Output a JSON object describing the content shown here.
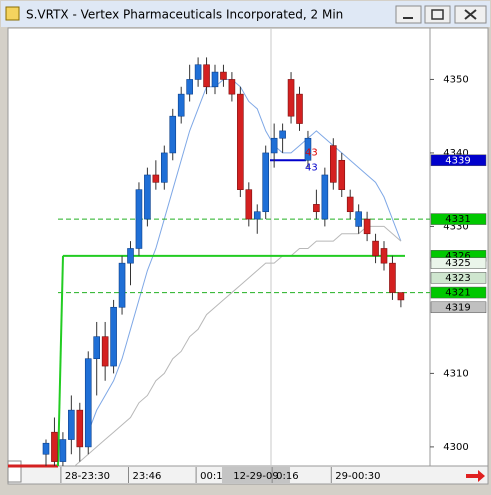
{
  "window": {
    "title": "S.VRTX - Vertex Pharmaceuticals Incorporated, 2 Min"
  },
  "chart_data": {
    "type": "candlestick",
    "categories": [
      null,
      null,
      "28-23:30",
      null,
      null,
      null,
      null,
      null,
      null,
      null,
      "23:46",
      null,
      null,
      null,
      null,
      null,
      null,
      null,
      "00:1",
      null,
      null,
      null,
      null,
      null,
      null,
      null,
      null,
      "0:16",
      null,
      null,
      null,
      null,
      null,
      null,
      "29-00:30",
      null,
      null,
      null,
      null,
      null,
      null,
      null,
      null
    ],
    "open": [
      4299,
      4302,
      4298,
      4301,
      4305,
      4300,
      4312,
      4315,
      4311,
      4319,
      4325,
      4327,
      4331,
      4337,
      4336,
      4340,
      4345,
      4348,
      4350,
      4352,
      4349,
      4351,
      4350,
      4348,
      4335,
      4331,
      4332,
      4340,
      4342,
      4350,
      4348,
      4339,
      4333,
      4331,
      4341,
      4339,
      4334,
      4330,
      4331,
      4328,
      4327,
      4325,
      4321
    ],
    "high": [
      4301,
      4304,
      4302,
      4307,
      4306,
      4313,
      4317,
      4317,
      4320,
      4326,
      4328,
      4336,
      4338,
      4339,
      4341,
      4346,
      4349,
      4352,
      4353,
      4353,
      4352,
      4352,
      4351,
      4349,
      4336,
      4333,
      4341,
      4344,
      4344,
      4351,
      4349,
      4343,
      4335,
      4338,
      4342,
      4340,
      4335,
      4333,
      4332,
      4329,
      4328,
      4326,
      4321
    ],
    "low": [
      4297,
      4297,
      4296,
      4299,
      4298,
      4299,
      4307,
      4309,
      4310,
      4318,
      4322,
      4326,
      4330,
      4335,
      4335,
      4339,
      4344,
      4347,
      4349,
      4348,
      4348,
      4349,
      4347,
      4334,
      4330,
      4329,
      4331,
      4338,
      4340,
      4344,
      4343,
      4338,
      4331,
      4330,
      4335,
      4334,
      4331,
      4329,
      4328,
      4325,
      4324,
      4320,
      4319
    ],
    "close": [
      4300.5,
      4298,
      4301,
      4305,
      4300,
      4312,
      4315,
      4311,
      4319,
      4325,
      4327,
      4335,
      4337,
      4336,
      4340,
      4345,
      4348,
      4350,
      4352,
      4349,
      4351,
      4350,
      4348,
      4335,
      4331,
      4332,
      4340,
      4342,
      4343,
      4345,
      4344,
      4342,
      4332,
      4337,
      4336,
      4335,
      4332,
      4332,
      4329,
      4326,
      4325,
      4321,
      4320
    ],
    "up_color": "#1f6fd6",
    "down_color": "#d42020",
    "overlays": [
      {
        "color": "#7fa8e6",
        "values": [
          null,
          null,
          null,
          null,
          null,
          4302,
          4305,
          4307,
          4309,
          4312,
          4316,
          4320,
          4324,
          4327,
          4331,
          4335,
          4339,
          4343,
          4346,
          4349,
          4349,
          4350,
          4350,
          4349,
          4347,
          4346,
          4343,
          4341,
          4340,
          4340,
          4341,
          4342,
          4343,
          4342,
          4341,
          4340,
          4339,
          4338,
          4337,
          4336,
          4334,
          4331,
          4328
        ]
      },
      {
        "color": "#b8b8b8",
        "values": [
          null,
          null,
          null,
          4297,
          4298,
          4299,
          4300,
          4301,
          4302,
          4303,
          4304,
          4306,
          4307,
          4309,
          4310,
          4312,
          4313,
          4315,
          4316,
          4318,
          4319,
          4320,
          4321,
          4322,
          4323,
          4324,
          4325,
          4325,
          4326,
          4326,
          4327,
          4327,
          4328,
          4328,
          4328,
          4329,
          4329,
          4329,
          4330,
          4330,
          4330,
          4329,
          4328
        ]
      }
    ],
    "levels": [
      {
        "value": 4331,
        "color": "#22b022",
        "style": "dashed"
      },
      {
        "value": 4321,
        "color": "#22b022",
        "style": "dashed"
      },
      {
        "value": 4326,
        "color": "#22cc22",
        "style": "solid"
      },
      {
        "value": 4339,
        "color": "#0000cc",
        "style": "short"
      }
    ],
    "annotations": [
      {
        "text": "43",
        "color": "#dd0000"
      },
      {
        "text": "43",
        "color": "#0000cc"
      }
    ],
    "price_badges": [
      {
        "value": 4339,
        "color": "#0000cc",
        "text_color": "#ffffff"
      },
      {
        "value": 4331,
        "color": "#00c800",
        "text_color": "#000000"
      },
      {
        "value": 4326,
        "color": "#00c800",
        "text_color": "#000000"
      },
      {
        "value": 4325,
        "color": "#eaf5ea",
        "text_color": "#000000"
      },
      {
        "value": 4323,
        "color": "#cfe6cf",
        "text_color": "#000000"
      },
      {
        "value": 4321,
        "color": "#00c800",
        "text_color": "#000000"
      },
      {
        "value": 4319,
        "color": "#c0c0c0",
        "text_color": "#000000"
      }
    ],
    "cursor_label": "12-29-09",
    "ylim": [
      4297.4,
      4357.0
    ],
    "yticks": [
      4300,
      4310,
      4330,
      4340,
      4350
    ],
    "grid": false
  }
}
